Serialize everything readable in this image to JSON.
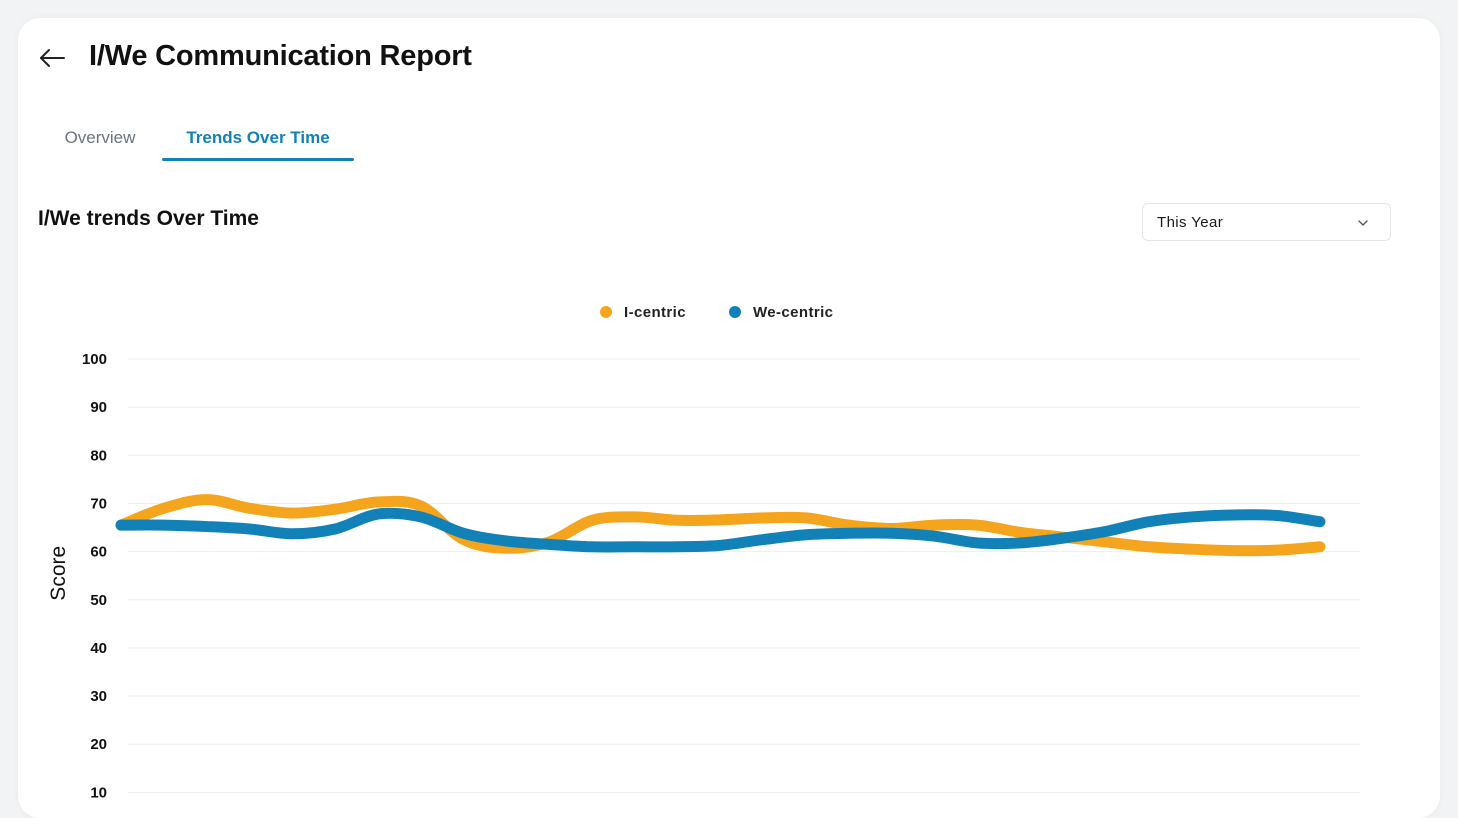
{
  "header": {
    "title": "I/We Communication Report",
    "back_icon": "arrow-left-icon"
  },
  "tabs": [
    {
      "label": "Overview",
      "active": false
    },
    {
      "label": "Trends Over Time",
      "active": true
    }
  ],
  "section": {
    "title": "I/We trends Over Time"
  },
  "range_select": {
    "value": "This Year",
    "icon": "chevron-down-icon"
  },
  "colors": {
    "accent": "#1281b8",
    "i_centric": "#f5a51d",
    "we_centric": "#1281b8"
  },
  "chart_data": {
    "type": "line",
    "title": "",
    "xlabel": "",
    "ylabel": "Score",
    "ylim": [
      10,
      100
    ],
    "yticks": [
      100,
      90,
      80,
      70,
      60,
      50,
      40,
      30,
      20,
      10
    ],
    "grid": true,
    "legend_position": "top-center",
    "smooth": true,
    "x": [
      0,
      1,
      2,
      3,
      4,
      5,
      6,
      7,
      8,
      9,
      10,
      11,
      12,
      13,
      14,
      15,
      16,
      17,
      18,
      19,
      20,
      21,
      22,
      23,
      24,
      25,
      26,
      27,
      28
    ],
    "series": [
      {
        "name": "I-centric",
        "color": "#f5a51d",
        "values": [
          65.5,
          69,
          70.8,
          69,
          68,
          68.8,
          70.3,
          69.5,
          62.5,
          60.7,
          62,
          66.5,
          67.2,
          66.5,
          66.6,
          67,
          67,
          65.5,
          64.8,
          65.5,
          65.5,
          64,
          63,
          62,
          61,
          60.5,
          60.2,
          60.3,
          61
        ]
      },
      {
        "name": "We-centric",
        "color": "#1281b8",
        "values": [
          65.5,
          65.5,
          65.2,
          64.7,
          63.7,
          64.7,
          67.8,
          67.2,
          63.8,
          62.2,
          61.5,
          61,
          61,
          61,
          61.3,
          62.5,
          63.5,
          63.8,
          63.8,
          63.2,
          61.8,
          61.8,
          62.8,
          64.2,
          66.2,
          67.2,
          67.6,
          67.5,
          66.2
        ]
      }
    ]
  }
}
